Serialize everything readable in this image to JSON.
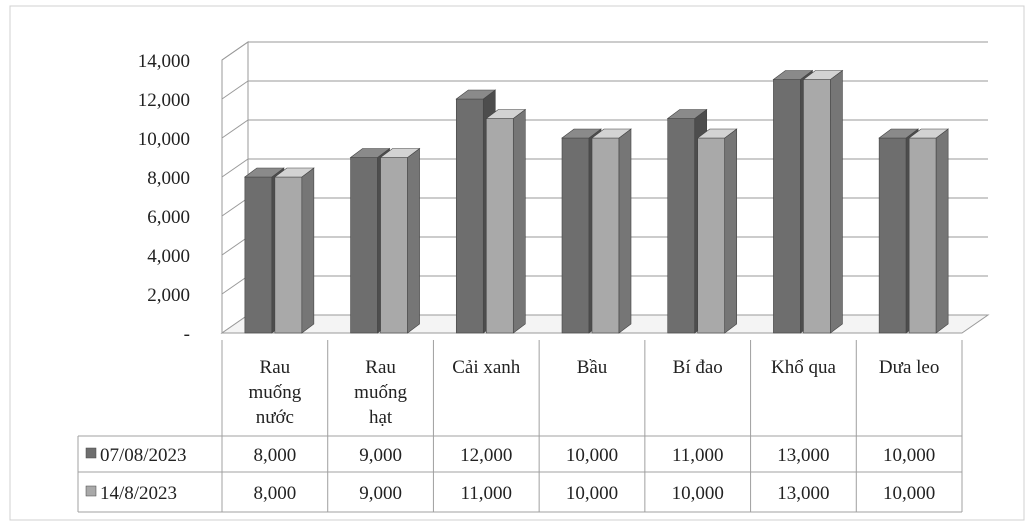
{
  "chart_data": {
    "type": "bar",
    "categories": [
      [
        "Rau",
        "muống",
        "nước"
      ],
      [
        "Rau",
        "muống",
        "hạt"
      ],
      [
        "Cải xanh"
      ],
      [
        "Bầu"
      ],
      [
        "Bí đao"
      ],
      [
        "Khổ qua"
      ],
      [
        "Dưa leo"
      ]
    ],
    "series": [
      {
        "name": "07/08/2023",
        "color": "#6e6e6e",
        "values": [
          8000,
          9000,
          12000,
          10000,
          11000,
          13000,
          10000
        ],
        "labels": [
          "8,000",
          "9,000",
          "12,000",
          "10,000",
          "11,000",
          "13,000",
          "10,000"
        ]
      },
      {
        "name": "14/8/2023",
        "color": "#a9a9a9",
        "values": [
          8000,
          9000,
          11000,
          10000,
          10000,
          13000,
          10000
        ],
        "labels": [
          "8,000",
          "9,000",
          "11,000",
          "10,000",
          "10,000",
          "13,000",
          "10,000"
        ]
      }
    ],
    "yticks": [
      0,
      2000,
      4000,
      6000,
      8000,
      10000,
      12000,
      14000
    ],
    "ytick_labels": [
      "-",
      "2,000",
      "4,000",
      "6,000",
      "8,000",
      "10,000",
      "12,000",
      "14,000"
    ],
    "ylim": [
      0,
      14000
    ],
    "grid": true,
    "legend": "data-table-left",
    "style": "3d-clustered-column-with-data-table"
  }
}
